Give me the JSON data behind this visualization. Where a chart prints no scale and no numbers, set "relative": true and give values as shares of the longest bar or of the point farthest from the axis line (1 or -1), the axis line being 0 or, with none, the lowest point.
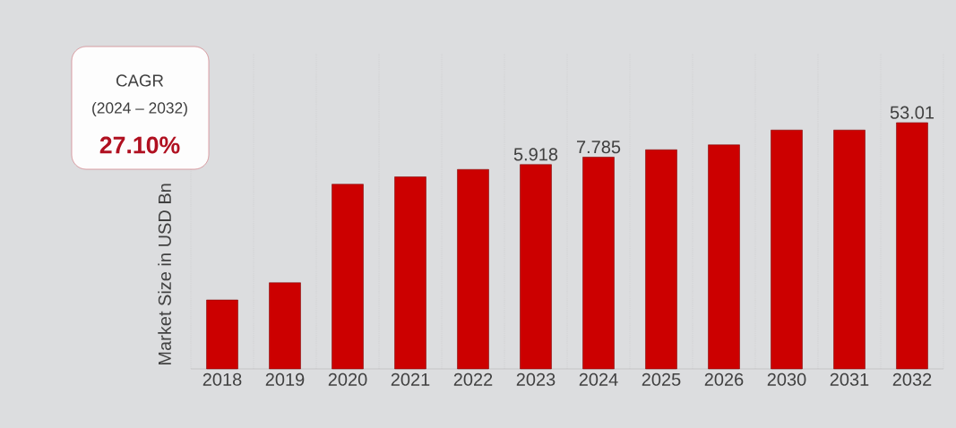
{
  "chart_data": {
    "type": "bar",
    "relative": true,
    "ylabel": "Market Size in USD Bn",
    "categories": [
      "2018",
      "2019",
      "2020",
      "2021",
      "2022",
      "2023",
      "2024",
      "2025",
      "2026",
      "2030",
      "2031",
      "2032"
    ],
    "values": [
      0.28,
      0.35,
      0.75,
      0.78,
      0.81,
      0.83,
      0.86,
      0.89,
      0.91,
      0.97,
      0.97,
      1
    ],
    "color": "#cc0000",
    "grid": "x",
    "annotations": [
      "CAGR",
      "(2024 – 2032)",
      "27.10%",
      {
        "text": "5.918",
        "x": "2023",
        "y": 0.83
      },
      {
        "text": "7.785",
        "x": "2024",
        "y": 0.86
      },
      {
        "text": "53.01",
        "x": "2032",
        "y": 1
      }
    ]
  }
}
